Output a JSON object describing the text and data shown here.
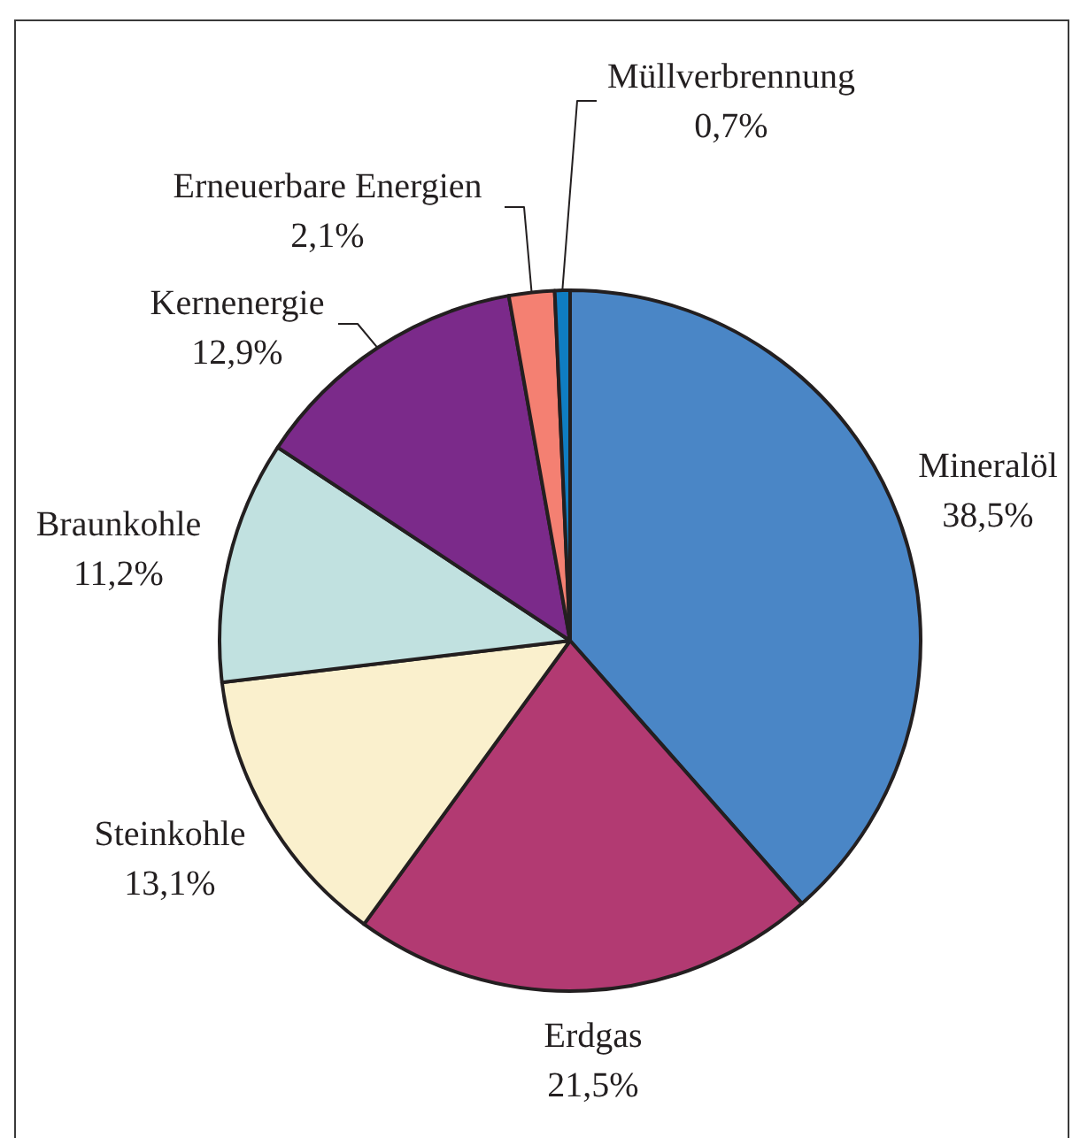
{
  "chart_data": {
    "type": "pie",
    "categories": [
      "Mineralöl",
      "Erdgas",
      "Steinkohle",
      "Braunkohle",
      "Kernenergie",
      "Erneuerbare Energien",
      "Müllverbrennung"
    ],
    "values": [
      38.5,
      21.5,
      13.1,
      11.2,
      12.9,
      2.1,
      0.7
    ],
    "colors": [
      "#4a86c6",
      "#b23a72",
      "#faf0cd",
      "#c1e1e0",
      "#7b2a8a",
      "#f48072",
      "#0f7dc2"
    ],
    "value_labels": [
      "38,5%",
      "21,5%",
      "13,1%",
      "11,2%",
      "12,9%",
      "2,1%",
      "0,7%"
    ]
  }
}
